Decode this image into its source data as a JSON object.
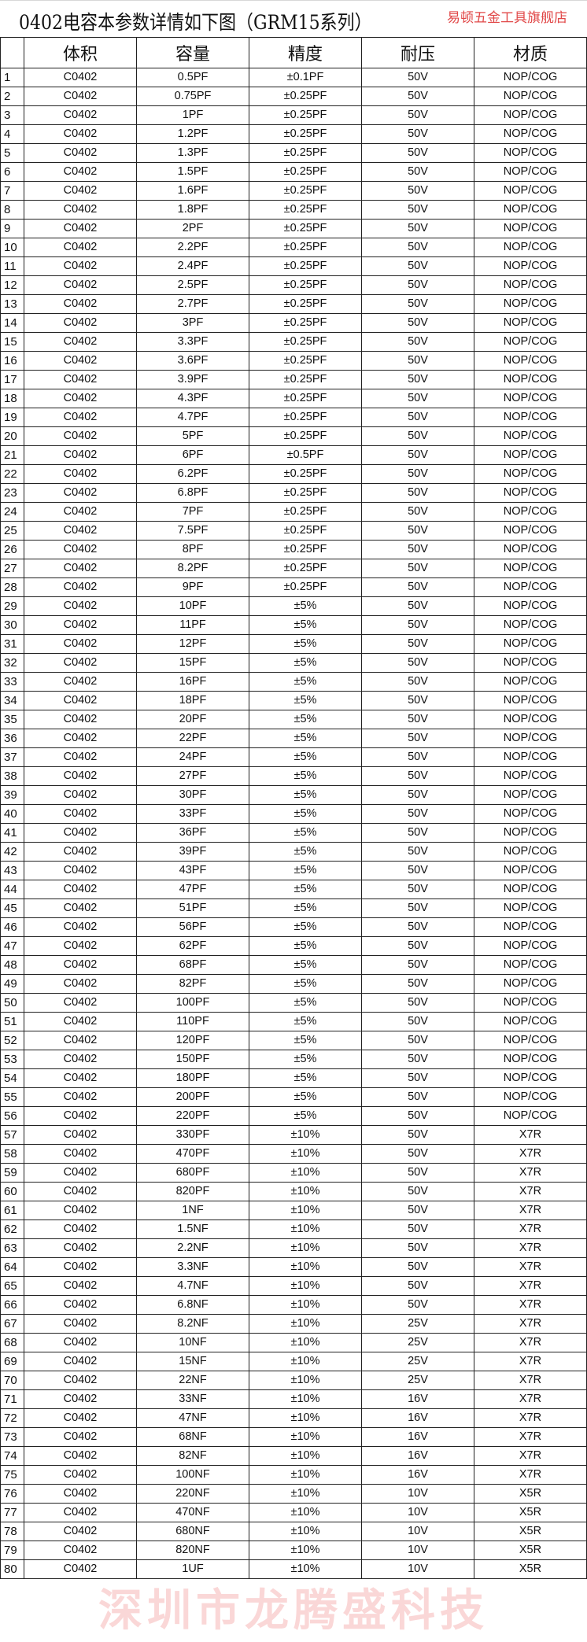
{
  "title": "0402电容本参数详情如下图（GRM15系列）",
  "watermarks": {
    "center": "深圳市龙腾盛科技",
    "corner": "易顿五金工具旗舰店"
  },
  "headers": [
    "",
    "体积",
    "容量",
    "精度",
    "耐压",
    "材质"
  ],
  "rows": [
    [
      "1",
      "C0402",
      "0.5PF",
      "±0.1PF",
      "50V",
      "NOP/COG"
    ],
    [
      "2",
      "C0402",
      "0.75PF",
      "±0.25PF",
      "50V",
      "NOP/COG"
    ],
    [
      "3",
      "C0402",
      "1PF",
      "±0.25PF",
      "50V",
      "NOP/COG"
    ],
    [
      "4",
      "C0402",
      "1.2PF",
      "±0.25PF",
      "50V",
      "NOP/COG"
    ],
    [
      "5",
      "C0402",
      "1.3PF",
      "±0.25PF",
      "50V",
      "NOP/COG"
    ],
    [
      "6",
      "C0402",
      "1.5PF",
      "±0.25PF",
      "50V",
      "NOP/COG"
    ],
    [
      "7",
      "C0402",
      "1.6PF",
      "±0.25PF",
      "50V",
      "NOP/COG"
    ],
    [
      "8",
      "C0402",
      "1.8PF",
      "±0.25PF",
      "50V",
      "NOP/COG"
    ],
    [
      "9",
      "C0402",
      "2PF",
      "±0.25PF",
      "50V",
      "NOP/COG"
    ],
    [
      "10",
      "C0402",
      "2.2PF",
      "±0.25PF",
      "50V",
      "NOP/COG"
    ],
    [
      "11",
      "C0402",
      "2.4PF",
      "±0.25PF",
      "50V",
      "NOP/COG"
    ],
    [
      "12",
      "C0402",
      "2.5PF",
      "±0.25PF",
      "50V",
      "NOP/COG"
    ],
    [
      "13",
      "C0402",
      "2.7PF",
      "±0.25PF",
      "50V",
      "NOP/COG"
    ],
    [
      "14",
      "C0402",
      "3PF",
      "±0.25PF",
      "50V",
      "NOP/COG"
    ],
    [
      "15",
      "C0402",
      "3.3PF",
      "±0.25PF",
      "50V",
      "NOP/COG"
    ],
    [
      "16",
      "C0402",
      "3.6PF",
      "±0.25PF",
      "50V",
      "NOP/COG"
    ],
    [
      "17",
      "C0402",
      "3.9PF",
      "±0.25PF",
      "50V",
      "NOP/COG"
    ],
    [
      "18",
      "C0402",
      "4.3PF",
      "±0.25PF",
      "50V",
      "NOP/COG"
    ],
    [
      "19",
      "C0402",
      "4.7PF",
      "±0.25PF",
      "50V",
      "NOP/COG"
    ],
    [
      "20",
      "C0402",
      "5PF",
      "±0.25PF",
      "50V",
      "NOP/COG"
    ],
    [
      "21",
      "C0402",
      "6PF",
      "±0.5PF",
      "50V",
      "NOP/COG"
    ],
    [
      "22",
      "C0402",
      "6.2PF",
      "±0.25PF",
      "50V",
      "NOP/COG"
    ],
    [
      "23",
      "C0402",
      "6.8PF",
      "±0.25PF",
      "50V",
      "NOP/COG"
    ],
    [
      "24",
      "C0402",
      "7PF",
      "±0.25PF",
      "50V",
      "NOP/COG"
    ],
    [
      "25",
      "C0402",
      "7.5PF",
      "±0.25PF",
      "50V",
      "NOP/COG"
    ],
    [
      "26",
      "C0402",
      "8PF",
      "±0.25PF",
      "50V",
      "NOP/COG"
    ],
    [
      "27",
      "C0402",
      "8.2PF",
      "±0.25PF",
      "50V",
      "NOP/COG"
    ],
    [
      "28",
      "C0402",
      "9PF",
      "±0.25PF",
      "50V",
      "NOP/COG"
    ],
    [
      "29",
      "C0402",
      "10PF",
      "±5%",
      "50V",
      "NOP/COG"
    ],
    [
      "30",
      "C0402",
      "11PF",
      "±5%",
      "50V",
      "NOP/COG"
    ],
    [
      "31",
      "C0402",
      "12PF",
      "±5%",
      "50V",
      "NOP/COG"
    ],
    [
      "32",
      "C0402",
      "15PF",
      "±5%",
      "50V",
      "NOP/COG"
    ],
    [
      "33",
      "C0402",
      "16PF",
      "±5%",
      "50V",
      "NOP/COG"
    ],
    [
      "34",
      "C0402",
      "18PF",
      "±5%",
      "50V",
      "NOP/COG"
    ],
    [
      "35",
      "C0402",
      "20PF",
      "±5%",
      "50V",
      "NOP/COG"
    ],
    [
      "36",
      "C0402",
      "22PF",
      "±5%",
      "50V",
      "NOP/COG"
    ],
    [
      "37",
      "C0402",
      "24PF",
      "±5%",
      "50V",
      "NOP/COG"
    ],
    [
      "38",
      "C0402",
      "27PF",
      "±5%",
      "50V",
      "NOP/COG"
    ],
    [
      "39",
      "C0402",
      "30PF",
      "±5%",
      "50V",
      "NOP/COG"
    ],
    [
      "40",
      "C0402",
      "33PF",
      "±5%",
      "50V",
      "NOP/COG"
    ],
    [
      "41",
      "C0402",
      "36PF",
      "±5%",
      "50V",
      "NOP/COG"
    ],
    [
      "42",
      "C0402",
      "39PF",
      "±5%",
      "50V",
      "NOP/COG"
    ],
    [
      "43",
      "C0402",
      "43PF",
      "±5%",
      "50V",
      "NOP/COG"
    ],
    [
      "44",
      "C0402",
      "47PF",
      "±5%",
      "50V",
      "NOP/COG"
    ],
    [
      "45",
      "C0402",
      "51PF",
      "±5%",
      "50V",
      "NOP/COG"
    ],
    [
      "46",
      "C0402",
      "56PF",
      "±5%",
      "50V",
      "NOP/COG"
    ],
    [
      "47",
      "C0402",
      "62PF",
      "±5%",
      "50V",
      "NOP/COG"
    ],
    [
      "48",
      "C0402",
      "68PF",
      "±5%",
      "50V",
      "NOP/COG"
    ],
    [
      "49",
      "C0402",
      "82PF",
      "±5%",
      "50V",
      "NOP/COG"
    ],
    [
      "50",
      "C0402",
      "100PF",
      "±5%",
      "50V",
      "NOP/COG"
    ],
    [
      "51",
      "C0402",
      "110PF",
      "±5%",
      "50V",
      "NOP/COG"
    ],
    [
      "52",
      "C0402",
      "120PF",
      "±5%",
      "50V",
      "NOP/COG"
    ],
    [
      "53",
      "C0402",
      "150PF",
      "±5%",
      "50V",
      "NOP/COG"
    ],
    [
      "54",
      "C0402",
      "180PF",
      "±5%",
      "50V",
      "NOP/COG"
    ],
    [
      "55",
      "C0402",
      "200PF",
      "±5%",
      "50V",
      "NOP/COG"
    ],
    [
      "56",
      "C0402",
      "220PF",
      "±5%",
      "50V",
      "NOP/COG"
    ],
    [
      "57",
      "C0402",
      "330PF",
      "±10%",
      "50V",
      "X7R"
    ],
    [
      "58",
      "C0402",
      "470PF",
      "±10%",
      "50V",
      "X7R"
    ],
    [
      "59",
      "C0402",
      "680PF",
      "±10%",
      "50V",
      "X7R"
    ],
    [
      "60",
      "C0402",
      "820PF",
      "±10%",
      "50V",
      "X7R"
    ],
    [
      "61",
      "C0402",
      "1NF",
      "±10%",
      "50V",
      "X7R"
    ],
    [
      "62",
      "C0402",
      "1.5NF",
      "±10%",
      "50V",
      "X7R"
    ],
    [
      "63",
      "C0402",
      "2.2NF",
      "±10%",
      "50V",
      "X7R"
    ],
    [
      "64",
      "C0402",
      "3.3NF",
      "±10%",
      "50V",
      "X7R"
    ],
    [
      "65",
      "C0402",
      "4.7NF",
      "±10%",
      "50V",
      "X7R"
    ],
    [
      "66",
      "C0402",
      "6.8NF",
      "±10%",
      "50V",
      "X7R"
    ],
    [
      "67",
      "C0402",
      "8.2NF",
      "±10%",
      "25V",
      "X7R"
    ],
    [
      "68",
      "C0402",
      "10NF",
      "±10%",
      "25V",
      "X7R"
    ],
    [
      "69",
      "C0402",
      "15NF",
      "±10%",
      "25V",
      "X7R"
    ],
    [
      "70",
      "C0402",
      "22NF",
      "±10%",
      "25V",
      "X7R"
    ],
    [
      "71",
      "C0402",
      "33NF",
      "±10%",
      "16V",
      "X7R"
    ],
    [
      "72",
      "C0402",
      "47NF",
      "±10%",
      "16V",
      "X7R"
    ],
    [
      "73",
      "C0402",
      "68NF",
      "±10%",
      "16V",
      "X7R"
    ],
    [
      "74",
      "C0402",
      "82NF",
      "±10%",
      "16V",
      "X7R"
    ],
    [
      "75",
      "C0402",
      "100NF",
      "±10%",
      "16V",
      "X7R"
    ],
    [
      "76",
      "C0402",
      "220NF",
      "±10%",
      "10V",
      "X5R"
    ],
    [
      "77",
      "C0402",
      "470NF",
      "±10%",
      "10V",
      "X5R"
    ],
    [
      "78",
      "C0402",
      "680NF",
      "±10%",
      "10V",
      "X5R"
    ],
    [
      "79",
      "C0402",
      "820NF",
      "±10%",
      "10V",
      "X5R"
    ],
    [
      "80",
      "C0402",
      "1UF",
      "±10%",
      "10V",
      "X5R"
    ]
  ]
}
